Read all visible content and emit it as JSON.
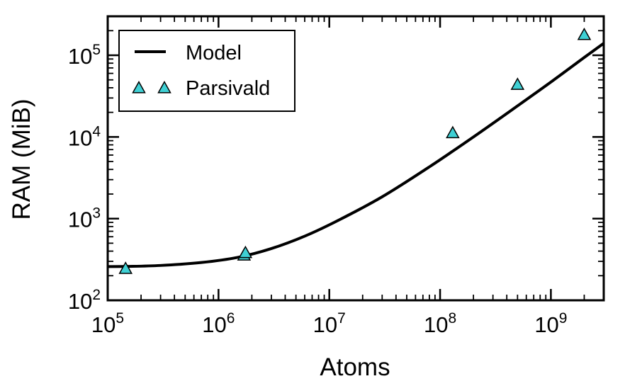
{
  "chart_data": {
    "type": "line",
    "xlabel": "Atoms",
    "ylabel": "RAM (MiB)",
    "x_scale": "log",
    "y_scale": "log",
    "xlim": [
      100000,
      3000000000
    ],
    "ylim": [
      100,
      300000
    ],
    "x_ticks": [
      {
        "value": 100000,
        "base": "10",
        "exp": "5"
      },
      {
        "value": 1000000,
        "base": "10",
        "exp": "6"
      },
      {
        "value": 10000000,
        "base": "10",
        "exp": "7"
      },
      {
        "value": 100000000,
        "base": "10",
        "exp": "8"
      },
      {
        "value": 1000000000,
        "base": "10",
        "exp": "9"
      }
    ],
    "y_ticks": [
      {
        "value": 100,
        "base": "10",
        "exp": "2"
      },
      {
        "value": 1000,
        "base": "10",
        "exp": "3"
      },
      {
        "value": 10000,
        "base": "10",
        "exp": "4"
      },
      {
        "value": 100000,
        "base": "10",
        "exp": "5"
      }
    ],
    "grid": false,
    "legend_position": "top-left",
    "series": [
      {
        "name": "Model",
        "kind": "line",
        "color": "#000000",
        "x": [
          100000,
          150000,
          300000,
          700000,
          1500000,
          3000000,
          6000000,
          12000000,
          30000000,
          80000000,
          200000000,
          500000000,
          1000000000,
          2000000000,
          3000000000
        ],
        "y": [
          259,
          260,
          267,
          290,
          336,
          430,
          610,
          950,
          1850,
          4300,
          10000,
          24000,
          47000,
          94000,
          140000
        ]
      },
      {
        "name": "Parsivald",
        "kind": "scatter",
        "marker": "triangle",
        "color": "#3fd0d4",
        "x": [
          145000,
          1700000,
          1750000,
          130000000,
          500000000,
          2000000000
        ],
        "y": [
          240,
          350,
          375,
          11000,
          43000,
          175000
        ]
      }
    ]
  }
}
